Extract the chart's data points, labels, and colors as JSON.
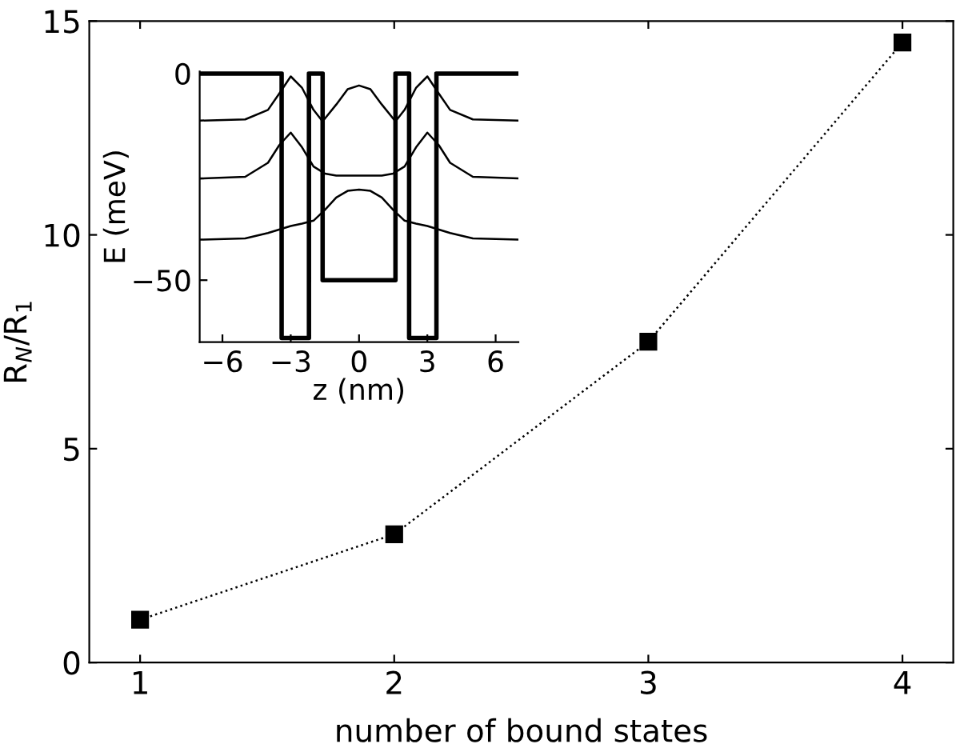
{
  "chart_data": [
    {
      "type": "line",
      "xlabel": "number of bound states",
      "ylabel": "R$_{N}$/R$_{1}$",
      "x": [
        1,
        2,
        3,
        4
      ],
      "xlim": [
        0.8,
        4.2
      ],
      "xticks": [
        1,
        2,
        3,
        4
      ],
      "ylim": [
        0,
        15
      ],
      "yticks": [
        0,
        5,
        10,
        15
      ],
      "grid": false,
      "marker": "square",
      "line_style": "dotted",
      "series": [
        {
          "color": "#000000",
          "values": [
            1.0,
            3.0,
            7.5,
            14.5
          ]
        }
      ]
    },
    {
      "type": "line",
      "xlabel": "z (nm)",
      "ylabel": "E (meV)",
      "xlim": [
        -7,
        7
      ],
      "xticks": [
        -6,
        -3,
        0,
        3,
        6
      ],
      "ylim": [
        -65,
        0.5
      ],
      "yticks": [
        -50,
        0
      ],
      "grid": false,
      "marker": "none",
      "line_style": "solid",
      "series": [
        {
          "color": "#000000",
          "x": [
            -7,
            -3.4,
            -3.4,
            -2.2,
            -2.2,
            -1.6,
            -1.6,
            1.6,
            1.6,
            2.2,
            2.2,
            3.4,
            3.4,
            7
          ],
          "values": [
            0,
            0,
            -64,
            -64,
            0,
            0,
            -50,
            -50,
            0,
            0,
            -64,
            -64,
            0,
            0
          ]
        },
        {
          "color": "#000000",
          "x": [
            -7,
            -5,
            -4,
            -3.5,
            -3,
            -2.5,
            -2,
            -1.6,
            -1,
            -0.5,
            0,
            0.5,
            1,
            1.6,
            2,
            2.5,
            3,
            3.5,
            4,
            5,
            7
          ],
          "values": [
            -11.4,
            -11.1,
            -8.8,
            -4.8,
            -0.7,
            -3.5,
            -8.8,
            -11.6,
            -7.5,
            -3.8,
            -2.9,
            -3.8,
            -7.5,
            -11.6,
            -8.8,
            -3.5,
            -0.7,
            -4.8,
            -8.8,
            -11.1,
            -11.4
          ]
        },
        {
          "color": "#000000",
          "x": [
            -7,
            -5,
            -4,
            -3.5,
            -3,
            -2.5,
            -2,
            -1.5,
            -1,
            0,
            1,
            1.5,
            2,
            2.5,
            3,
            3.5,
            4,
            5,
            7
          ],
          "values": [
            -25.4,
            -25,
            -21.6,
            -17.3,
            -14.3,
            -17.9,
            -22.5,
            -24.2,
            -24.7,
            -24.7,
            -24.7,
            -24.2,
            -22.5,
            -17.9,
            -14.3,
            -17.3,
            -21.6,
            -25,
            -25.4
          ]
        },
        {
          "color": "#000000",
          "x": [
            -7,
            -5,
            -4,
            -3,
            -2.5,
            -2,
            -1.5,
            -1,
            -0.5,
            0,
            0.5,
            1,
            1.5,
            2,
            2.5,
            3,
            4,
            5,
            7
          ],
          "values": [
            -40.2,
            -39.9,
            -38.6,
            -36.9,
            -36.3,
            -35.6,
            -33,
            -30,
            -28.4,
            -28.1,
            -28.4,
            -30,
            -33,
            -35.6,
            -36.3,
            -36.9,
            -38.6,
            -39.9,
            -40.2
          ]
        }
      ]
    }
  ]
}
